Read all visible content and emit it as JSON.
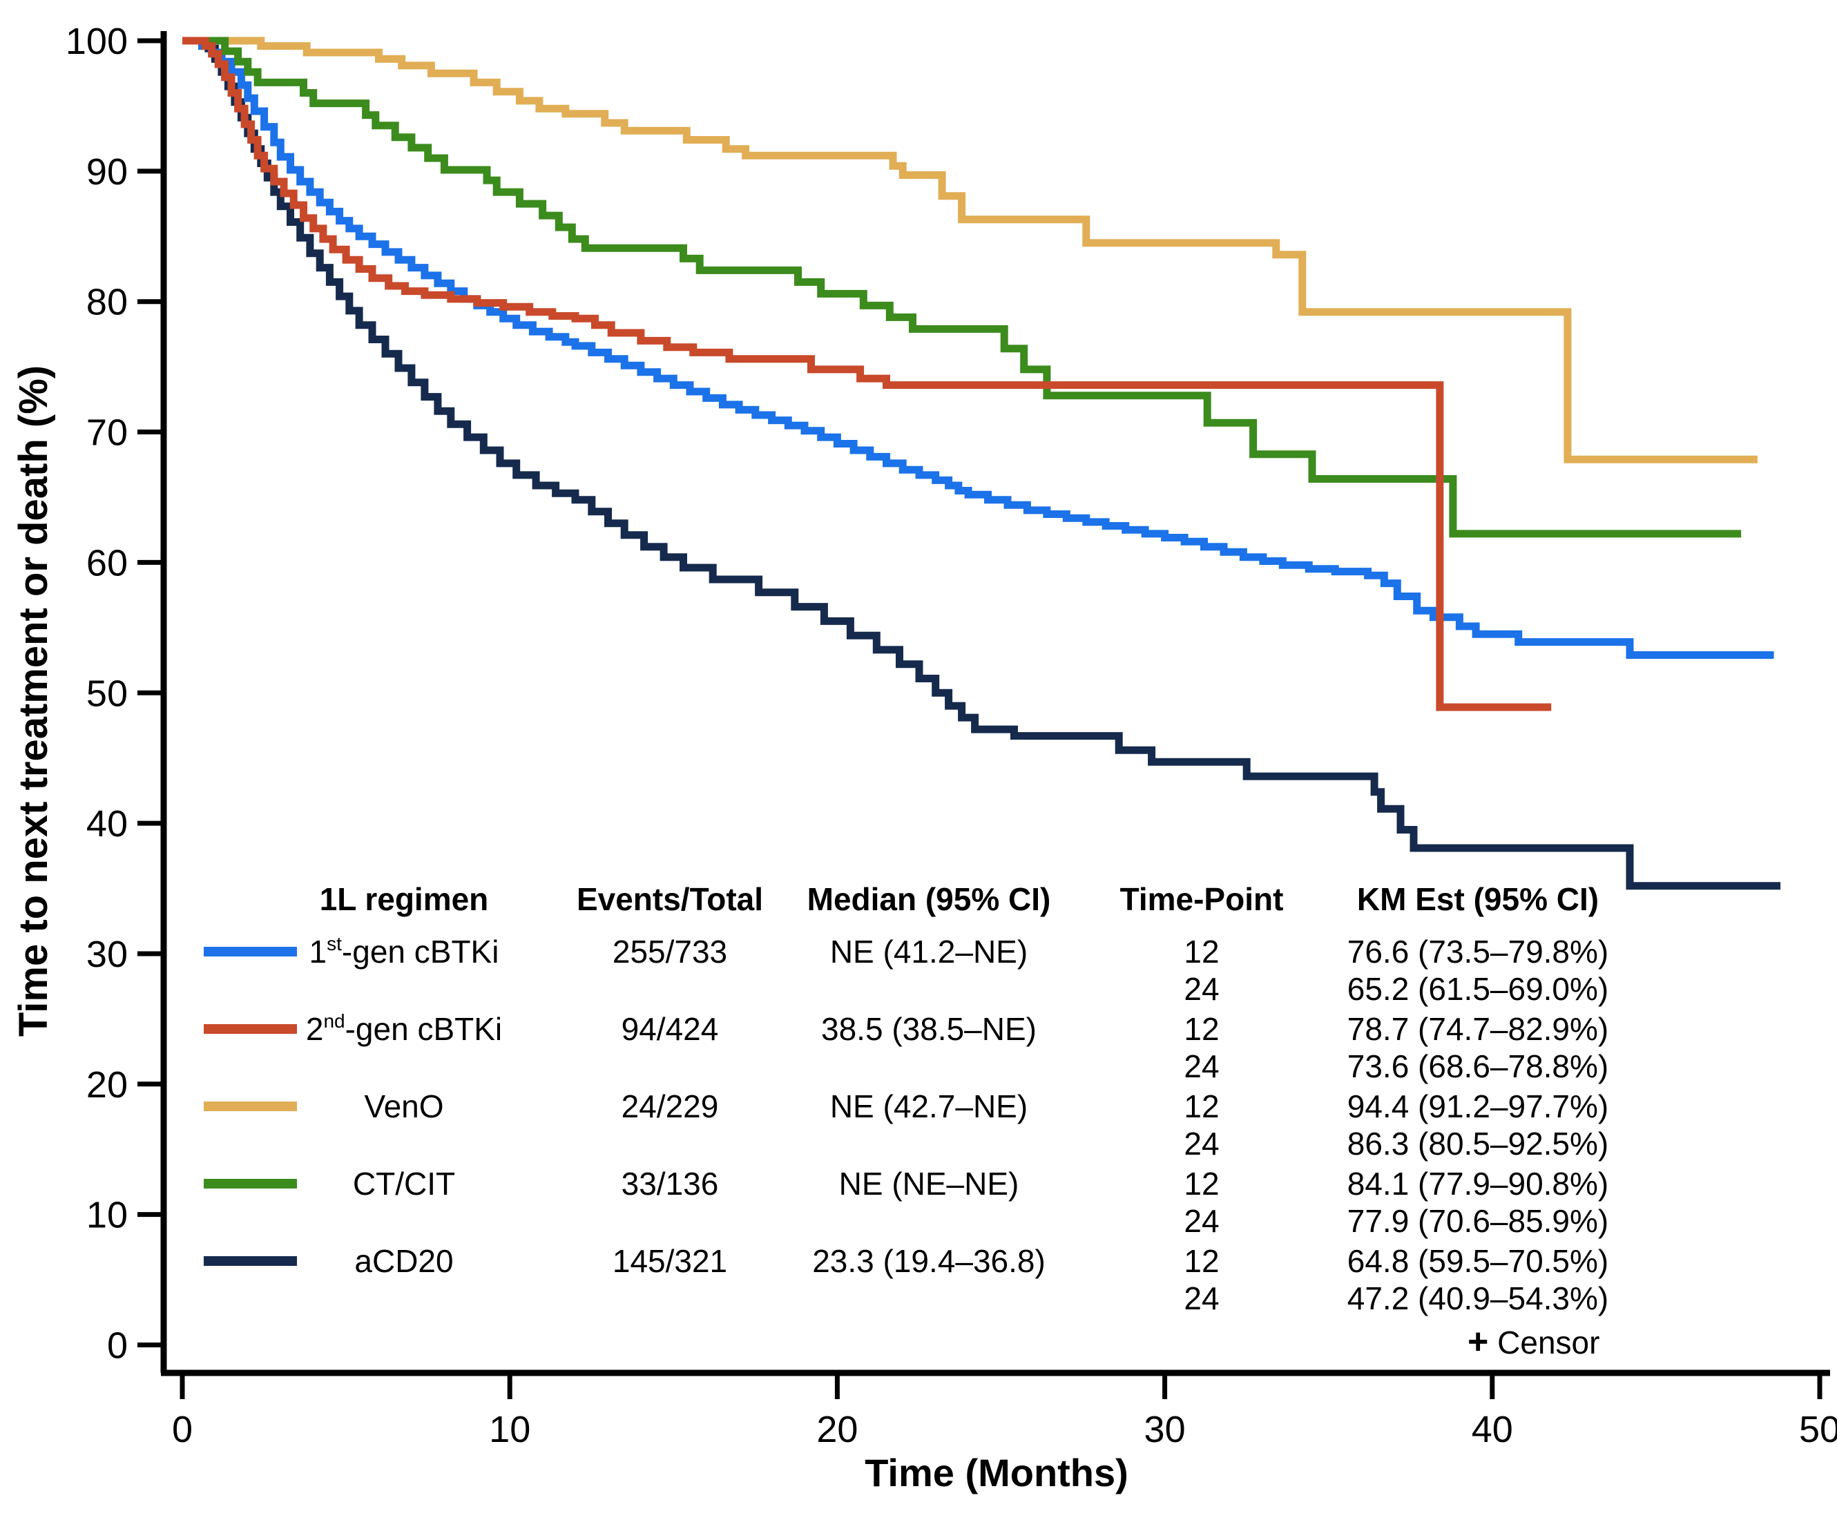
{
  "figure": {
    "background": "#ffffff",
    "axis_color": "#000000"
  },
  "axes": {
    "x": {
      "label": "Time (Months)",
      "min": 0,
      "max": 50,
      "ticks": [
        0,
        10,
        20,
        30,
        40,
        50
      ]
    },
    "y": {
      "label": "Time to next treatment or death (%)",
      "min": 0,
      "max": 100,
      "ticks": [
        0,
        10,
        20,
        30,
        40,
        50,
        60,
        70,
        80,
        90,
        100
      ]
    }
  },
  "legend": {
    "headers": {
      "regimen": "1L regimen",
      "events": "Events/Total",
      "median": "Median (95% CI)",
      "timepoint": "Time-Point",
      "km": "KM Est (95% CI)"
    },
    "censor": {
      "symbol": "+",
      "label": "Censor"
    },
    "rows": [
      {
        "name": "1st-gen cBTKi",
        "label_parts": {
          "pre": "1",
          "sup": "st",
          "post": "-gen cBTKi"
        },
        "color": "#1C72E8",
        "events_total": "255/733",
        "median": "NE (41.2–NE)",
        "km": [
          {
            "timepoint": "12",
            "estimate": "76.6 (73.5–79.8%)"
          },
          {
            "timepoint": "24",
            "estimate": "65.2 (61.5–69.0%)"
          }
        ]
      },
      {
        "name": "2nd-gen cBTKi",
        "label_parts": {
          "pre": "2",
          "sup": "nd",
          "post": "-gen cBTKi"
        },
        "color": "#C9492B",
        "events_total": "94/424",
        "median": "38.5 (38.5–NE)",
        "km": [
          {
            "timepoint": "12",
            "estimate": "78.7 (74.7–82.9%)"
          },
          {
            "timepoint": "24",
            "estimate": "73.6 (68.6–78.8%)"
          }
        ]
      },
      {
        "name": "VenO",
        "label_parts": {
          "pre": "VenO",
          "sup": "",
          "post": ""
        },
        "color": "#E1AE55",
        "events_total": "24/229",
        "median": "NE (42.7–NE)",
        "km": [
          {
            "timepoint": "12",
            "estimate": "94.4 (91.2–97.7%)"
          },
          {
            "timepoint": "24",
            "estimate": "86.3 (80.5–92.5%)"
          }
        ]
      },
      {
        "name": "CT/CIT",
        "label_parts": {
          "pre": "CT/CIT",
          "sup": "",
          "post": ""
        },
        "color": "#3B8B1D",
        "events_total": "33/136",
        "median": "NE (NE–NE)",
        "km": [
          {
            "timepoint": "12",
            "estimate": "84.1 (77.9–90.8%)"
          },
          {
            "timepoint": "24",
            "estimate": "77.9 (70.6–85.9%)"
          }
        ]
      },
      {
        "name": "aCD20",
        "label_parts": {
          "pre": "aCD20",
          "sup": "",
          "post": ""
        },
        "color": "#152A4D",
        "events_total": "145/321",
        "median": "23.3 (19.4–36.8)",
        "km": [
          {
            "timepoint": "12",
            "estimate": "64.8 (59.5–70.5%)"
          },
          {
            "timepoint": "24",
            "estimate": "47.2 (40.9–54.3%)"
          }
        ]
      }
    ]
  },
  "chart_data": {
    "type": "line",
    "subtype": "kaplan-meier-step",
    "title": "",
    "xlabel": "Time (Months)",
    "ylabel": "Time to next treatment or death (%)",
    "xlim": [
      0,
      50
    ],
    "ylim": [
      0,
      100
    ],
    "grid": false,
    "legend_position": "lower-left-table",
    "series": [
      {
        "name": "1st-gen cBTKi",
        "color": "#1C72E8",
        "end_x": 48.6,
        "points": [
          [
            0,
            100
          ],
          [
            0.6,
            99.6
          ],
          [
            0.9,
            99.1
          ],
          [
            1.2,
            98.4
          ],
          [
            1.5,
            97.6
          ],
          [
            1.8,
            96.6
          ],
          [
            2.0,
            95.6
          ],
          [
            2.2,
            94.6
          ],
          [
            2.5,
            93.4
          ],
          [
            2.8,
            92.2
          ],
          [
            3.0,
            91.1
          ],
          [
            3.3,
            90.1
          ],
          [
            3.6,
            89.2
          ],
          [
            3.9,
            88.4
          ],
          [
            4.2,
            87.6
          ],
          [
            4.5,
            86.9
          ],
          [
            4.8,
            86.2
          ],
          [
            5.1,
            85.6
          ],
          [
            5.4,
            85.0
          ],
          [
            5.8,
            84.4
          ],
          [
            6.2,
            83.8
          ],
          [
            6.6,
            83.2
          ],
          [
            7.0,
            82.6
          ],
          [
            7.4,
            82.0
          ],
          [
            7.8,
            81.4
          ],
          [
            8.2,
            80.8
          ],
          [
            8.6,
            80.2
          ],
          [
            9.0,
            79.7
          ],
          [
            9.4,
            79.2
          ],
          [
            9.8,
            78.7
          ],
          [
            10.2,
            78.2
          ],
          [
            10.7,
            77.7
          ],
          [
            11.2,
            77.3
          ],
          [
            11.7,
            76.9
          ],
          [
            12.0,
            76.6
          ],
          [
            12.5,
            76.1
          ],
          [
            13.0,
            75.6
          ],
          [
            13.5,
            75.1
          ],
          [
            14.0,
            74.6
          ],
          [
            14.5,
            74.1
          ],
          [
            15.0,
            73.6
          ],
          [
            15.5,
            73.1
          ],
          [
            16.0,
            72.6
          ],
          [
            16.5,
            72.1
          ],
          [
            17.0,
            71.7
          ],
          [
            17.5,
            71.3
          ],
          [
            18.0,
            70.9
          ],
          [
            18.5,
            70.5
          ],
          [
            19.0,
            70.1
          ],
          [
            19.5,
            69.6
          ],
          [
            20.0,
            69.1
          ],
          [
            20.5,
            68.6
          ],
          [
            21.0,
            68.1
          ],
          [
            21.5,
            67.6
          ],
          [
            22.0,
            67.1
          ],
          [
            22.5,
            66.7
          ],
          [
            23.0,
            66.3
          ],
          [
            23.4,
            65.9
          ],
          [
            23.7,
            65.5
          ],
          [
            24.0,
            65.2
          ],
          [
            24.6,
            64.8
          ],
          [
            25.2,
            64.4
          ],
          [
            25.8,
            64.0
          ],
          [
            26.4,
            63.7
          ],
          [
            27.0,
            63.4
          ],
          [
            27.6,
            63.1
          ],
          [
            28.2,
            62.8
          ],
          [
            28.8,
            62.5
          ],
          [
            29.4,
            62.2
          ],
          [
            30.0,
            61.9
          ],
          [
            30.6,
            61.6
          ],
          [
            31.2,
            61.2
          ],
          [
            31.8,
            60.8
          ],
          [
            32.4,
            60.4
          ],
          [
            33.0,
            60.1
          ],
          [
            33.6,
            59.8
          ],
          [
            34.4,
            59.5
          ],
          [
            35.2,
            59.3
          ],
          [
            36.2,
            59.0
          ],
          [
            36.7,
            58.4
          ],
          [
            37.1,
            57.4
          ],
          [
            37.7,
            56.3
          ],
          [
            38.2,
            55.8
          ],
          [
            39.0,
            55.1
          ],
          [
            39.5,
            54.5
          ],
          [
            40.8,
            53.9
          ],
          [
            44.2,
            52.9
          ]
        ]
      },
      {
        "name": "2nd-gen cBTKi",
        "color": "#C9492B",
        "end_x": 41.8,
        "points": [
          [
            0,
            100
          ],
          [
            0.7,
            99.6
          ],
          [
            0.9,
            99.0
          ],
          [
            1.1,
            98.2
          ],
          [
            1.3,
            97.2
          ],
          [
            1.5,
            96.0
          ],
          [
            1.7,
            94.8
          ],
          [
            1.9,
            93.6
          ],
          [
            2.1,
            92.4
          ],
          [
            2.3,
            91.2
          ],
          [
            2.5,
            90.2
          ],
          [
            2.8,
            89.2
          ],
          [
            3.1,
            88.3
          ],
          [
            3.4,
            87.4
          ],
          [
            3.7,
            86.4
          ],
          [
            4.0,
            85.6
          ],
          [
            4.3,
            84.8
          ],
          [
            4.6,
            84.0
          ],
          [
            5.0,
            83.2
          ],
          [
            5.4,
            82.5
          ],
          [
            5.8,
            81.8
          ],
          [
            6.3,
            81.2
          ],
          [
            6.8,
            80.8
          ],
          [
            7.4,
            80.5
          ],
          [
            8.2,
            80.2
          ],
          [
            9.0,
            79.9
          ],
          [
            9.8,
            79.6
          ],
          [
            10.6,
            79.2
          ],
          [
            11.3,
            78.9
          ],
          [
            12.0,
            78.7
          ],
          [
            12.6,
            78.2
          ],
          [
            13.1,
            77.6
          ],
          [
            14.0,
            77.0
          ],
          [
            14.8,
            76.5
          ],
          [
            15.6,
            76.1
          ],
          [
            16.7,
            75.6
          ],
          [
            19.2,
            74.8
          ],
          [
            20.7,
            74.1
          ],
          [
            21.5,
            73.6
          ],
          [
            38.4,
            48.9
          ]
        ]
      },
      {
        "name": "VenO",
        "color": "#E1AE55",
        "end_x": 48.1,
        "points": [
          [
            0,
            100
          ],
          [
            2.4,
            99.6
          ],
          [
            3.8,
            99.1
          ],
          [
            6.0,
            98.6
          ],
          [
            6.7,
            98.1
          ],
          [
            7.6,
            97.5
          ],
          [
            8.9,
            96.8
          ],
          [
            9.6,
            96.1
          ],
          [
            10.3,
            95.4
          ],
          [
            10.9,
            94.8
          ],
          [
            11.7,
            94.4
          ],
          [
            12.9,
            93.7
          ],
          [
            13.5,
            93.1
          ],
          [
            15.4,
            92.4
          ],
          [
            16.6,
            91.7
          ],
          [
            17.2,
            91.2
          ],
          [
            21.7,
            90.4
          ],
          [
            22.0,
            89.7
          ],
          [
            23.2,
            88.1
          ],
          [
            23.8,
            86.3
          ],
          [
            27.6,
            84.5
          ],
          [
            33.4,
            83.6
          ],
          [
            34.2,
            79.2
          ],
          [
            42.3,
            67.9
          ]
        ]
      },
      {
        "name": "CT/CIT",
        "color": "#3B8B1D",
        "end_x": 47.6,
        "points": [
          [
            0,
            100
          ],
          [
            1.3,
            99.2
          ],
          [
            1.7,
            98.4
          ],
          [
            2.0,
            97.6
          ],
          [
            2.3,
            96.8
          ],
          [
            3.7,
            96.0
          ],
          [
            4.0,
            95.2
          ],
          [
            5.6,
            94.3
          ],
          [
            5.9,
            93.5
          ],
          [
            6.5,
            92.6
          ],
          [
            7.0,
            91.8
          ],
          [
            7.5,
            91.0
          ],
          [
            8.0,
            90.1
          ],
          [
            9.3,
            89.3
          ],
          [
            9.6,
            88.4
          ],
          [
            10.3,
            87.5
          ],
          [
            11.0,
            86.6
          ],
          [
            11.5,
            85.7
          ],
          [
            11.9,
            84.8
          ],
          [
            12.3,
            84.1
          ],
          [
            15.3,
            83.3
          ],
          [
            15.8,
            82.4
          ],
          [
            18.8,
            81.5
          ],
          [
            19.5,
            80.6
          ],
          [
            20.8,
            79.7
          ],
          [
            21.6,
            78.8
          ],
          [
            22.3,
            77.9
          ],
          [
            25.1,
            76.4
          ],
          [
            25.7,
            74.8
          ],
          [
            26.4,
            72.8
          ],
          [
            31.3,
            70.7
          ],
          [
            32.7,
            68.3
          ],
          [
            34.5,
            66.4
          ],
          [
            38.8,
            62.2
          ]
        ]
      },
      {
        "name": "aCD20",
        "color": "#152A4D",
        "end_x": 48.8,
        "points": [
          [
            0,
            100
          ],
          [
            0.8,
            99.4
          ],
          [
            1.0,
            98.6
          ],
          [
            1.2,
            97.6
          ],
          [
            1.4,
            96.5
          ],
          [
            1.6,
            95.3
          ],
          [
            1.8,
            94.1
          ],
          [
            2.0,
            92.9
          ],
          [
            2.2,
            91.7
          ],
          [
            2.4,
            90.6
          ],
          [
            2.6,
            89.5
          ],
          [
            2.8,
            88.4
          ],
          [
            3.0,
            87.3
          ],
          [
            3.3,
            86.1
          ],
          [
            3.6,
            84.9
          ],
          [
            3.9,
            83.7
          ],
          [
            4.2,
            82.6
          ],
          [
            4.5,
            81.5
          ],
          [
            4.8,
            80.4
          ],
          [
            5.1,
            79.3
          ],
          [
            5.4,
            78.2
          ],
          [
            5.8,
            77.1
          ],
          [
            6.2,
            76.0
          ],
          [
            6.6,
            74.9
          ],
          [
            7.0,
            73.8
          ],
          [
            7.4,
            72.7
          ],
          [
            7.8,
            71.6
          ],
          [
            8.2,
            70.6
          ],
          [
            8.7,
            69.6
          ],
          [
            9.2,
            68.6
          ],
          [
            9.7,
            67.6
          ],
          [
            10.2,
            66.7
          ],
          [
            10.8,
            65.9
          ],
          [
            11.4,
            65.3
          ],
          [
            12.0,
            64.8
          ],
          [
            12.5,
            63.9
          ],
          [
            13.0,
            63.0
          ],
          [
            13.5,
            62.1
          ],
          [
            14.1,
            61.2
          ],
          [
            14.7,
            60.4
          ],
          [
            15.3,
            59.6
          ],
          [
            16.2,
            58.7
          ],
          [
            17.6,
            57.7
          ],
          [
            18.7,
            56.6
          ],
          [
            19.6,
            55.5
          ],
          [
            20.4,
            54.4
          ],
          [
            21.2,
            53.3
          ],
          [
            21.9,
            52.2
          ],
          [
            22.5,
            51.1
          ],
          [
            23.0,
            50.0
          ],
          [
            23.4,
            49.0
          ],
          [
            23.8,
            48.1
          ],
          [
            24.2,
            47.2
          ],
          [
            25.4,
            46.7
          ],
          [
            28.6,
            45.6
          ],
          [
            29.6,
            44.7
          ],
          [
            32.5,
            43.6
          ],
          [
            36.4,
            42.4
          ],
          [
            36.6,
            41.1
          ],
          [
            37.2,
            39.5
          ],
          [
            37.6,
            38.1
          ],
          [
            44.2,
            35.2
          ]
        ]
      }
    ]
  }
}
